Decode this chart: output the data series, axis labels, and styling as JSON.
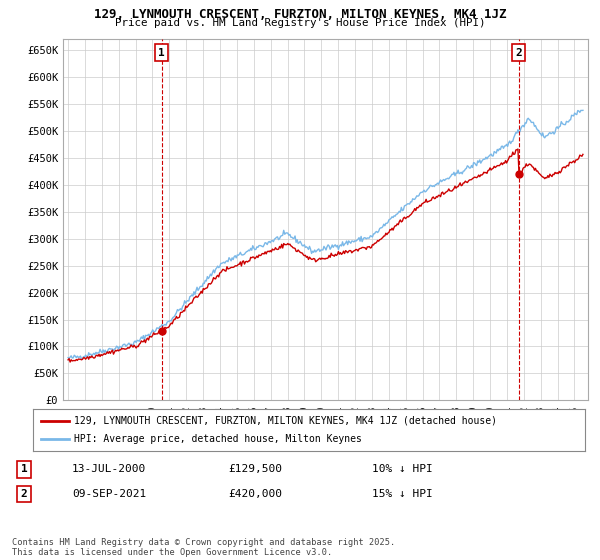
{
  "title": "129, LYNMOUTH CRESCENT, FURZTON, MILTON KEYNES, MK4 1JZ",
  "subtitle": "Price paid vs. HM Land Registry's House Price Index (HPI)",
  "ylim": [
    0,
    670000
  ],
  "yticks": [
    0,
    50000,
    100000,
    150000,
    200000,
    250000,
    300000,
    350000,
    400000,
    450000,
    500000,
    550000,
    600000,
    650000
  ],
  "ytick_labels": [
    "£0",
    "£50K",
    "£100K",
    "£150K",
    "£200K",
    "£250K",
    "£300K",
    "£350K",
    "£400K",
    "£450K",
    "£500K",
    "£550K",
    "£600K",
    "£650K"
  ],
  "sale1_year": 2000.535,
  "sale1_price": 129500,
  "sale2_year": 2021.689,
  "sale2_price": 420000,
  "sale1_date": "13-JUL-2000",
  "sale1_hpi_pct": "10% ↓ HPI",
  "sale2_date": "09-SEP-2021",
  "sale2_hpi_pct": "15% ↓ HPI",
  "sale1_label_price": "£129,500",
  "sale2_label_price": "£420,000",
  "legend_label1": "129, LYNMOUTH CRESCENT, FURZTON, MILTON KEYNES, MK4 1JZ (detached house)",
  "legend_label2": "HPI: Average price, detached house, Milton Keynes",
  "footer": "Contains HM Land Registry data © Crown copyright and database right 2025.\nThis data is licensed under the Open Government Licence v3.0.",
  "line_color_hpi": "#7ab8e8",
  "line_color_price": "#cc0000",
  "background_color": "#ffffff",
  "grid_color": "#cccccc",
  "xlim_left": 1994.7,
  "xlim_right": 2025.8
}
